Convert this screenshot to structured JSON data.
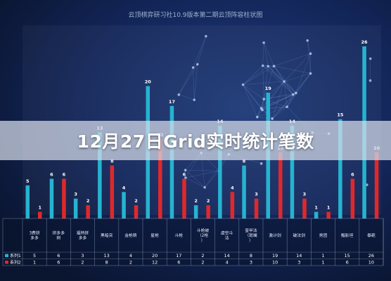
{
  "banner": {
    "text": "12月27日Grid实时统计笔数"
  },
  "colors": {
    "series1": "#26b3cf",
    "series2": "#e0282a",
    "background": "#0d1a3a"
  },
  "chart_data": {
    "type": "bar",
    "title": "云顶棋弈研习社10.9版本第二期云顶阵容柱状图",
    "categories": [
      "3费拼多多",
      "拼多多刺",
      "福特拼多多",
      "黑暗突",
      "金枪萌",
      "星枪",
      "斗枪",
      "斗枪被（2枪）",
      "虚空斗法",
      "奎甲法（斑斓）",
      "激计剑",
      "破法剑",
      "男团",
      "黯影坦",
      "泰葩"
    ],
    "series": [
      {
        "name": "系列1",
        "values": [
          5,
          6,
          3,
          13,
          4,
          20,
          17,
          2,
          14,
          8,
          19,
          14,
          1,
          15,
          26
        ]
      },
      {
        "name": "系列2",
        "values": [
          1,
          6,
          2,
          8,
          2,
          12,
          6,
          2,
          4,
          3,
          10,
          3,
          1,
          6,
          10
        ]
      }
    ],
    "ylim": [
      0,
      28
    ],
    "grid": false,
    "legend": "bottom-left"
  }
}
